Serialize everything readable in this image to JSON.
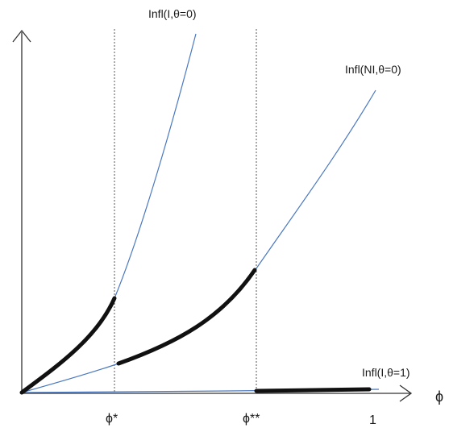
{
  "labels": {
    "curve_infl_i_theta0": "Infl(I,θ=0)",
    "curve_infl_ni_theta0": "Infl(NI,θ=0)",
    "curve_infl_i_theta1": "Infl(I,θ=1)",
    "tick_phi_star": "ϕ*",
    "tick_phi_double_star": "ϕ**",
    "tick_one": "1",
    "x_axis_variable": "ϕ"
  },
  "colors": {
    "thin_curve": "#4a78c0",
    "bold_segment": "#111111",
    "axis": "#333333",
    "dotted_guide": "#555555"
  },
  "icons": {
    "y_axis_arrow": "arrow-up-icon",
    "x_axis_arrow": "arrow-right-icon"
  }
}
